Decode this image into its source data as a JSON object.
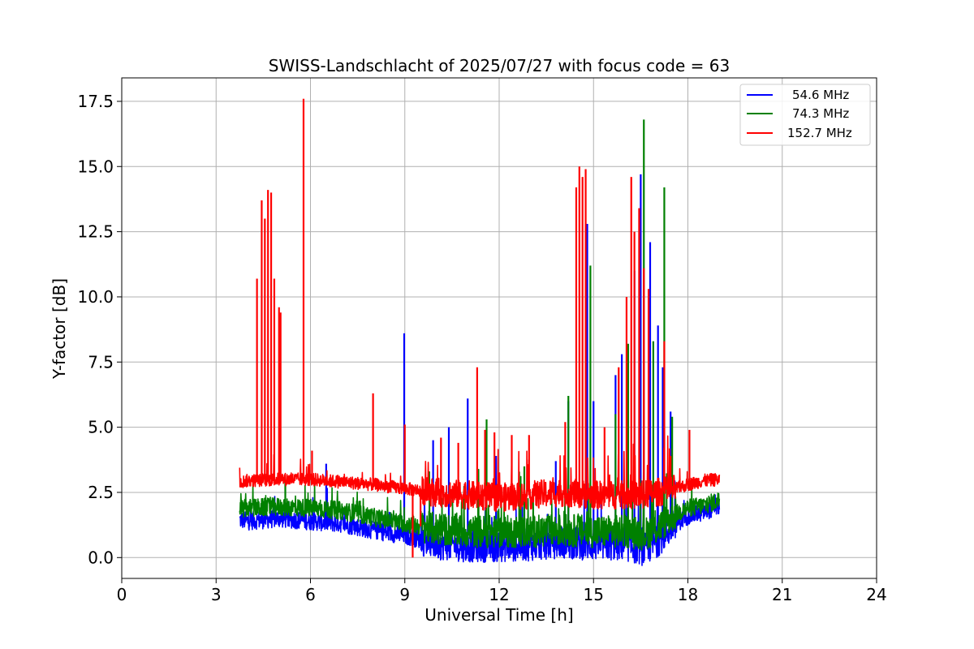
{
  "chart_data": {
    "type": "line",
    "title": "SWISS-Landschlacht of 2025/07/27 with focus code = 63",
    "xlabel": "Universal Time [h]",
    "ylabel": "Y-factor [dB]",
    "xlim": [
      0,
      24
    ],
    "ylim": [
      -0.8,
      18.4
    ],
    "xticks": [
      0,
      3,
      6,
      9,
      12,
      15,
      18,
      21,
      24
    ],
    "xtick_labels": [
      "0",
      "3",
      "6",
      "9",
      "12",
      "15",
      "18",
      "21",
      "24"
    ],
    "yticks": [
      0.0,
      2.5,
      5.0,
      7.5,
      10.0,
      12.5,
      15.0,
      17.5
    ],
    "ytick_labels": [
      "0.0",
      "2.5",
      "5.0",
      "7.5",
      "10.0",
      "12.5",
      "15.0",
      "17.5"
    ],
    "grid": true,
    "legend_position": "top-right",
    "series": [
      {
        "name": "54.6 MHz",
        "color": "#0000ff",
        "x": [
          3.75,
          4.0,
          5.0,
          6.0,
          7.0,
          8.0,
          9.0,
          10.0,
          11.0,
          12.0,
          13.0,
          14.0,
          15.0,
          16.0,
          16.6,
          17.0,
          17.5,
          18.0,
          18.5,
          19.0
        ],
        "baseline": [
          1.45,
          1.4,
          1.5,
          1.4,
          1.3,
          1.05,
          0.85,
          0.55,
          0.45,
          0.45,
          0.5,
          0.6,
          0.5,
          0.5,
          0.3,
          0.6,
          1.2,
          1.6,
          1.75,
          2.0
        ],
        "spikes": [
          {
            "x": 6.5,
            "y": 3.6
          },
          {
            "x": 8.98,
            "y": 8.6
          },
          {
            "x": 9.9,
            "y": 4.5
          },
          {
            "x": 10.4,
            "y": 5.0
          },
          {
            "x": 11.0,
            "y": 6.1
          },
          {
            "x": 11.9,
            "y": 3.9
          },
          {
            "x": 13.8,
            "y": 3.7
          },
          {
            "x": 14.2,
            "y": 6.0
          },
          {
            "x": 14.8,
            "y": 12.8
          },
          {
            "x": 15.0,
            "y": 6.0
          },
          {
            "x": 15.7,
            "y": 7.0
          },
          {
            "x": 15.9,
            "y": 7.8
          },
          {
            "x": 16.3,
            "y": 11.0
          },
          {
            "x": 16.5,
            "y": 14.7
          },
          {
            "x": 16.8,
            "y": 12.1
          },
          {
            "x": 17.05,
            "y": 8.9
          },
          {
            "x": 17.2,
            "y": 7.3
          },
          {
            "x": 17.45,
            "y": 5.6
          }
        ]
      },
      {
        "name": "74.3 MHz",
        "color": "#008000",
        "x": [
          3.75,
          4.0,
          5.0,
          6.0,
          7.0,
          8.0,
          9.0,
          10.0,
          11.0,
          12.0,
          13.0,
          14.0,
          15.0,
          16.0,
          16.6,
          17.0,
          17.5,
          18.0,
          18.5,
          19.0
        ],
        "baseline": [
          1.85,
          1.9,
          1.95,
          1.9,
          1.8,
          1.55,
          1.3,
          1.1,
          1.0,
          1.0,
          1.0,
          1.05,
          1.0,
          1.0,
          0.9,
          1.1,
          1.6,
          1.9,
          2.0,
          2.2
        ],
        "spikes": [
          {
            "x": 5.2,
            "y": 2.9
          },
          {
            "x": 11.6,
            "y": 5.3
          },
          {
            "x": 12.8,
            "y": 3.5
          },
          {
            "x": 14.2,
            "y": 6.2
          },
          {
            "x": 14.9,
            "y": 11.2
          },
          {
            "x": 15.7,
            "y": 5.5
          },
          {
            "x": 16.1,
            "y": 8.2
          },
          {
            "x": 16.6,
            "y": 16.8
          },
          {
            "x": 16.9,
            "y": 8.3
          },
          {
            "x": 17.25,
            "y": 14.2
          },
          {
            "x": 17.5,
            "y": 5.4
          }
        ]
      },
      {
        "name": "152.7 MHz",
        "color": "#ff0000",
        "x": [
          3.75,
          4.0,
          5.0,
          6.0,
          7.0,
          8.0,
          9.0,
          10.0,
          11.0,
          12.0,
          13.0,
          14.0,
          15.0,
          16.0,
          16.6,
          17.0,
          17.5,
          18.0,
          18.5,
          19.0
        ],
        "baseline": [
          2.9,
          2.95,
          3.0,
          3.0,
          2.9,
          2.8,
          2.65,
          2.5,
          2.4,
          2.3,
          2.4,
          2.5,
          2.4,
          2.4,
          2.4,
          2.5,
          2.6,
          2.8,
          2.95,
          3.0
        ],
        "spikes": [
          {
            "x": 4.3,
            "y": 10.7
          },
          {
            "x": 4.45,
            "y": 13.7
          },
          {
            "x": 4.55,
            "y": 13.0
          },
          {
            "x": 4.65,
            "y": 14.1
          },
          {
            "x": 4.75,
            "y": 14.0
          },
          {
            "x": 4.85,
            "y": 10.7
          },
          {
            "x": 5.0,
            "y": 9.6
          },
          {
            "x": 5.05,
            "y": 9.4
          },
          {
            "x": 5.78,
            "y": 17.6
          },
          {
            "x": 6.05,
            "y": 4.1
          },
          {
            "x": 7.99,
            "y": 6.3
          },
          {
            "x": 9.0,
            "y": 5.1
          },
          {
            "x": 10.15,
            "y": 4.6
          },
          {
            "x": 10.7,
            "y": 4.4
          },
          {
            "x": 11.3,
            "y": 7.3
          },
          {
            "x": 11.55,
            "y": 4.9
          },
          {
            "x": 11.85,
            "y": 4.8
          },
          {
            "x": 12.4,
            "y": 4.7
          },
          {
            "x": 12.95,
            "y": 4.7
          },
          {
            "x": 14.1,
            "y": 5.2
          },
          {
            "x": 14.45,
            "y": 14.2
          },
          {
            "x": 14.55,
            "y": 15.0
          },
          {
            "x": 14.65,
            "y": 14.6
          },
          {
            "x": 14.75,
            "y": 14.9
          },
          {
            "x": 15.35,
            "y": 5.0
          },
          {
            "x": 15.8,
            "y": 7.3
          },
          {
            "x": 16.05,
            "y": 10.0
          },
          {
            "x": 16.2,
            "y": 14.6
          },
          {
            "x": 16.3,
            "y": 12.5
          },
          {
            "x": 16.45,
            "y": 13.4
          },
          {
            "x": 16.6,
            "y": 11.1
          },
          {
            "x": 16.75,
            "y": 10.3
          },
          {
            "x": 17.25,
            "y": 8.3
          },
          {
            "x": 17.45,
            "y": 3.9
          },
          {
            "x": 18.05,
            "y": 4.9
          }
        ],
        "dips": [
          {
            "x": 9.25,
            "y": 0.0
          },
          {
            "x": 9.5,
            "y": 1.2
          }
        ]
      }
    ]
  }
}
